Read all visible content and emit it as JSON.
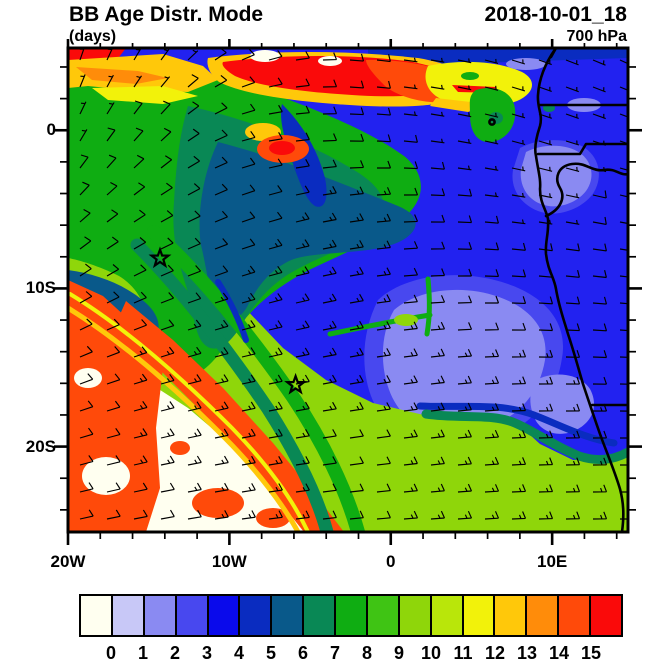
{
  "header": {
    "title_left": "BB Age Distr. Mode",
    "title_right": "2018-10-01_18",
    "subtitle_left": "(days)",
    "subtitle_right": "700 hPa"
  },
  "chart_data": {
    "type": "heatmap",
    "title": "BB Age Distr. Mode",
    "subtitle_units": "(days)",
    "valid_time": "2018-10-01_18",
    "level": "700 hPa",
    "extent": {
      "lon_min": -20,
      "lon_max": 14.7,
      "lat_min": -25.4,
      "lat_max": 5.2
    },
    "x_axis": {
      "tick_labels": [
        "20W",
        "10W",
        "0",
        "10E"
      ],
      "tick_lons": [
        -20,
        -10,
        0,
        10
      ],
      "minor_step_deg": 2
    },
    "y_axis": {
      "tick_labels": [
        "0",
        "10S",
        "20S"
      ],
      "tick_lats": [
        0,
        -10,
        -20
      ],
      "minor_step_deg": 2
    },
    "colorbar": {
      "boundary_labels": [
        "0",
        "1",
        "2",
        "3",
        "4",
        "5",
        "6",
        "7",
        "8",
        "9",
        "10",
        "11",
        "12",
        "13",
        "14",
        "15"
      ],
      "colors": [
        "#fffff0",
        "#c8c8f7",
        "#8a8af2",
        "#4848ef",
        "#0a0aeb",
        "#0a2cc0",
        "#09598a",
        "#098855",
        "#0fad12",
        "#3fc414",
        "#8fd60a",
        "#b9e60a",
        "#f2f20a",
        "#ffc80a",
        "#ff8c0a",
        "#ff4a0a",
        "#fa0a0a"
      ],
      "units": "days"
    },
    "field_grid": {
      "lons": [
        -20,
        -15,
        -10,
        -5,
        0,
        5,
        10,
        15
      ],
      "lats": [
        5,
        0,
        -5,
        -10,
        -15,
        -20,
        -25
      ],
      "mode_days": [
        [
          14,
          13,
          15,
          15,
          12,
          3,
          3,
          3
        ],
        [
          9,
          7,
          6,
          6,
          12,
          3,
          3,
          3
        ],
        [
          8,
          6,
          6,
          4,
          3,
          3,
          3,
          2
        ],
        [
          15,
          11,
          10,
          10,
          3,
          3,
          2,
          3
        ],
        [
          14,
          0,
          11,
          10,
          3,
          2,
          3,
          3
        ],
        [
          15,
          0,
          11,
          11,
          10,
          3,
          3,
          10
        ],
        [
          0,
          15,
          11,
          11,
          10,
          10,
          10,
          10
        ]
      ]
    },
    "markers": [
      {
        "name": "star-marker",
        "lon": -14.3,
        "lat": -8.1
      },
      {
        "name": "star-marker",
        "lon": -5.9,
        "lat": -16.1
      }
    ],
    "wind": {
      "type": "barbs",
      "units": "kt",
      "spacing_px": 27,
      "grid": {
        "cols": 7,
        "rows": 7,
        "azimuth_deg": [
          [
            15,
            35,
            70,
            95,
            100,
            110,
            115
          ],
          [
            25,
            45,
            80,
            92,
            100,
            108,
            110
          ],
          [
            45,
            60,
            72,
            82,
            92,
            100,
            102
          ],
          [
            58,
            68,
            74,
            80,
            88,
            94,
            96
          ],
          [
            68,
            74,
            78,
            80,
            84,
            90,
            92
          ],
          [
            74,
            78,
            80,
            82,
            84,
            88,
            90
          ],
          [
            78,
            80,
            83,
            85,
            86,
            88,
            90
          ]
        ],
        "speed_kt": [
          [
            5,
            5,
            10,
            10,
            5,
            5,
            5
          ],
          [
            5,
            10,
            10,
            10,
            5,
            5,
            5
          ],
          [
            10,
            10,
            10,
            15,
            10,
            5,
            10
          ],
          [
            10,
            10,
            15,
            15,
            10,
            10,
            10
          ],
          [
            10,
            15,
            15,
            15,
            15,
            15,
            10
          ],
          [
            10,
            15,
            15,
            10,
            15,
            15,
            15
          ],
          [
            10,
            10,
            15,
            10,
            15,
            15,
            15
          ]
        ]
      }
    }
  },
  "colors": {
    "base_sea": "#2222f0",
    "coastline": "#000000",
    "background": "#ffffff"
  }
}
